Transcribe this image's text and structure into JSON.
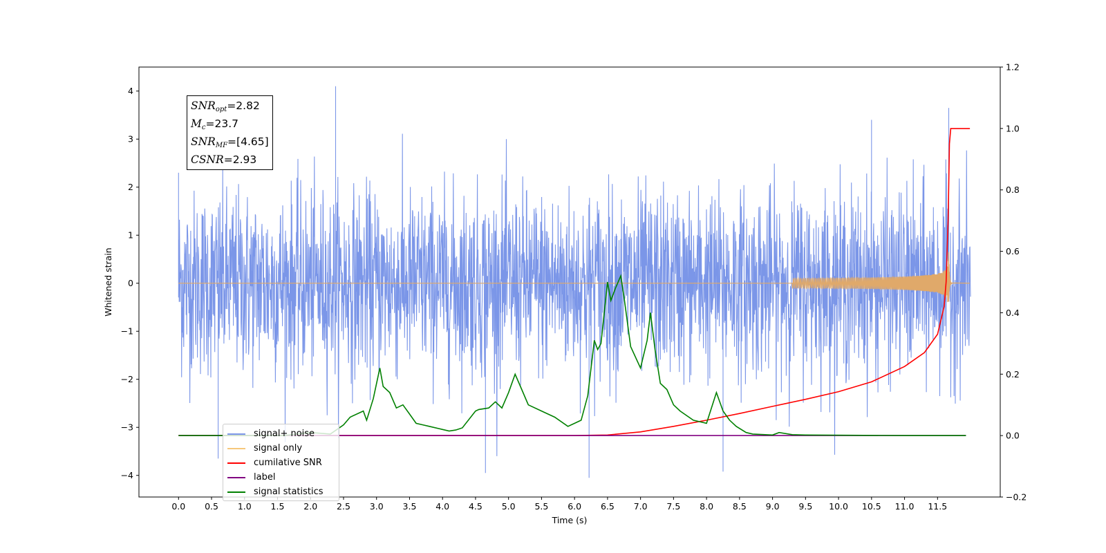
{
  "chart_data": {
    "type": "line",
    "xlabel": "Time (s)",
    "ylabel": "Whitened strain",
    "xlim": [
      -0.6,
      12.45
    ],
    "ylim": [
      -4.45,
      4.5
    ],
    "y2lim": [
      -0.2,
      1.2
    ],
    "x_ticks": [
      "0.0",
      "0.5",
      "1.0",
      "1.5",
      "2.0",
      "2.5",
      "3.0",
      "3.5",
      "4.0",
      "4.5",
      "5.0",
      "5.5",
      "6.0",
      "6.5",
      "7.0",
      "7.5",
      "8.0",
      "8.5",
      "9.0",
      "9.5",
      "10.0",
      "10.5",
      "11.0",
      "11.5"
    ],
    "y_ticks": [
      "4",
      "3",
      "2",
      "1",
      "0",
      "−1",
      "−2",
      "−3",
      "−4"
    ],
    "y2_ticks": [
      "1.2",
      "1.0",
      "0.8",
      "0.6",
      "0.4",
      "0.2",
      "0.0",
      "−0.2"
    ],
    "grid": false,
    "legend_position": "lower-left",
    "annotation": {
      "snr_opt": "=2.82",
      "mc": "=23.7",
      "snr_mf": "=[4.65]",
      "csnr": "=2.93"
    },
    "legend": [
      "signal+ noise",
      "signal only",
      "cumilative SNR",
      "label",
      "signal statistics"
    ],
    "noise_envelope": {
      "description_values": "approximate amplitude envelope of the whitened strain noise",
      "x_range": [
        0.0,
        12.0
      ],
      "typical_amplitude": 2.0,
      "peak_values": [
        [
          0.0,
          2.3
        ],
        [
          0.6,
          -3.65
        ],
        [
          2.38,
          4.1
        ],
        [
          4.65,
          -3.95
        ],
        [
          6.22,
          -4.05
        ],
        [
          8.25,
          -3.92
        ],
        [
          10.5,
          3.4
        ],
        [
          11.67,
          3.65
        ]
      ]
    },
    "signal_only": {
      "chirp_start": 9.3,
      "merger_time": 11.67,
      "peak_amplitude": 0.65
    },
    "series": [
      {
        "name": "cumilative SNR",
        "axis": "right",
        "color": "#ff0000",
        "x": [
          0.0,
          5.0,
          6.0,
          6.5,
          7.0,
          7.5,
          8.0,
          8.5,
          9.0,
          9.5,
          10.0,
          10.5,
          11.0,
          11.3,
          11.5,
          11.6,
          11.63,
          11.66,
          11.68,
          11.7,
          11.99
        ],
        "values": [
          0.0,
          0.0,
          0.0,
          0.002,
          0.012,
          0.03,
          0.05,
          0.072,
          0.095,
          0.118,
          0.143,
          0.175,
          0.225,
          0.27,
          0.33,
          0.42,
          0.5,
          0.7,
          0.95,
          1.0,
          1.0
        ]
      },
      {
        "name": "label",
        "axis": "right",
        "color": "#800080",
        "x": [
          0.0,
          11.93
        ],
        "values": [
          0.0,
          0.0
        ]
      },
      {
        "name": "signal statistics",
        "axis": "right",
        "color": "#008000",
        "x": [
          0.0,
          1.6,
          2.0,
          2.3,
          2.5,
          2.6,
          2.8,
          2.85,
          2.95,
          3.05,
          3.1,
          3.2,
          3.3,
          3.4,
          3.5,
          3.6,
          3.7,
          3.8,
          4.0,
          4.1,
          4.2,
          4.3,
          4.5,
          4.55,
          4.7,
          4.8,
          4.9,
          5.0,
          5.1,
          5.2,
          5.3,
          5.5,
          5.7,
          5.9,
          6.0,
          6.1,
          6.2,
          6.3,
          6.35,
          6.4,
          6.5,
          6.55,
          6.62,
          6.7,
          6.75,
          6.85,
          7.0,
          7.1,
          7.15,
          7.22,
          7.3,
          7.4,
          7.5,
          7.6,
          7.8,
          8.0,
          8.15,
          8.25,
          8.35,
          8.45,
          8.6,
          8.7,
          9.0,
          9.1,
          9.3,
          9.5,
          11.0,
          11.93
        ],
        "values": [
          0.0,
          0.0,
          0.01,
          0.005,
          0.035,
          0.06,
          0.08,
          0.05,
          0.12,
          0.22,
          0.16,
          0.14,
          0.09,
          0.1,
          0.07,
          0.04,
          0.035,
          0.03,
          0.02,
          0.015,
          0.018,
          0.025,
          0.08,
          0.085,
          0.09,
          0.11,
          0.09,
          0.14,
          0.2,
          0.15,
          0.1,
          0.08,
          0.06,
          0.03,
          0.04,
          0.05,
          0.13,
          0.31,
          0.28,
          0.3,
          0.5,
          0.44,
          0.48,
          0.52,
          0.45,
          0.29,
          0.22,
          0.31,
          0.4,
          0.28,
          0.17,
          0.15,
          0.1,
          0.08,
          0.05,
          0.04,
          0.14,
          0.08,
          0.05,
          0.03,
          0.01,
          0.005,
          0.002,
          0.01,
          0.003,
          0.002,
          0.0,
          0.0
        ]
      }
    ],
    "colors": {
      "signal_noise": "#7b96e8",
      "signal_only": "#e0a96a",
      "cumulative_snr": "#ff0000",
      "label": "#800080",
      "signal_statistics": "#008000"
    }
  }
}
